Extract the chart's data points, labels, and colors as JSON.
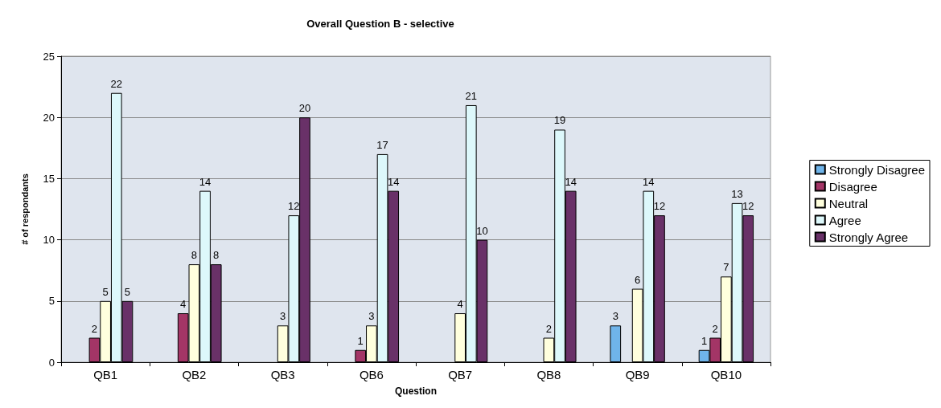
{
  "chart_data": {
    "type": "bar",
    "title": "Overall Question B - selective",
    "xlabel": "Question",
    "ylabel": "# of respondants",
    "categories": [
      "QB1",
      "QB2",
      "QB3",
      "QB6",
      "QB7",
      "QB8",
      "QB9",
      "QB10"
    ],
    "series": [
      {
        "name": "Strongly Disagree",
        "color": "#6fb4ea",
        "values": [
          null,
          null,
          null,
          null,
          null,
          null,
          3,
          1
        ]
      },
      {
        "name": "Disagree",
        "color": "#a33566",
        "values": [
          2,
          4,
          null,
          1,
          null,
          null,
          null,
          2
        ]
      },
      {
        "name": "Neutral",
        "color": "#ffffdd",
        "values": [
          5,
          8,
          3,
          3,
          4,
          2,
          6,
          7
        ]
      },
      {
        "name": "Agree",
        "color": "#ddf8fb",
        "values": [
          22,
          14,
          12,
          17,
          21,
          19,
          14,
          13
        ]
      },
      {
        "name": "Strongly Agree",
        "color": "#693168",
        "values": [
          5,
          8,
          20,
          14,
          10,
          14,
          12,
          12
        ]
      }
    ],
    "ylim": [
      0,
      25
    ],
    "yticks": [
      0,
      5,
      10,
      15,
      20,
      25
    ],
    "grid": "y",
    "legend": "right",
    "data_labels": true
  }
}
